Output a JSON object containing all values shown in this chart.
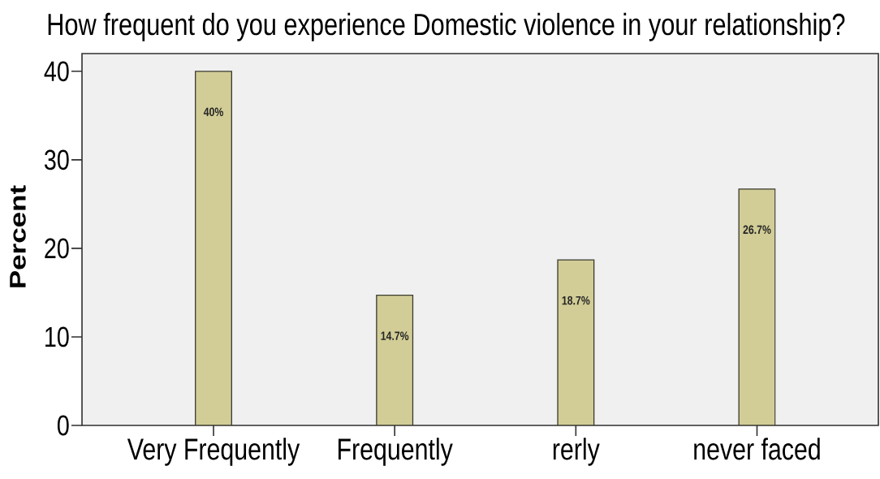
{
  "chart_data": {
    "type": "bar",
    "title": "How frequent do you experience Domestic violence in your relationship?",
    "ylabel": "Percent",
    "categories": [
      "Very Frequently",
      "Frequently",
      "rerly",
      "never faced"
    ],
    "values": [
      40,
      14.7,
      18.7,
      26.7
    ],
    "color": "#d2cd96",
    "ylim": [
      0,
      42
    ],
    "yticks": [
      0,
      10,
      20,
      30,
      40
    ],
    "value_labels": [
      "40%",
      "14.7%",
      "18.7%",
      "26.7%"
    ]
  }
}
